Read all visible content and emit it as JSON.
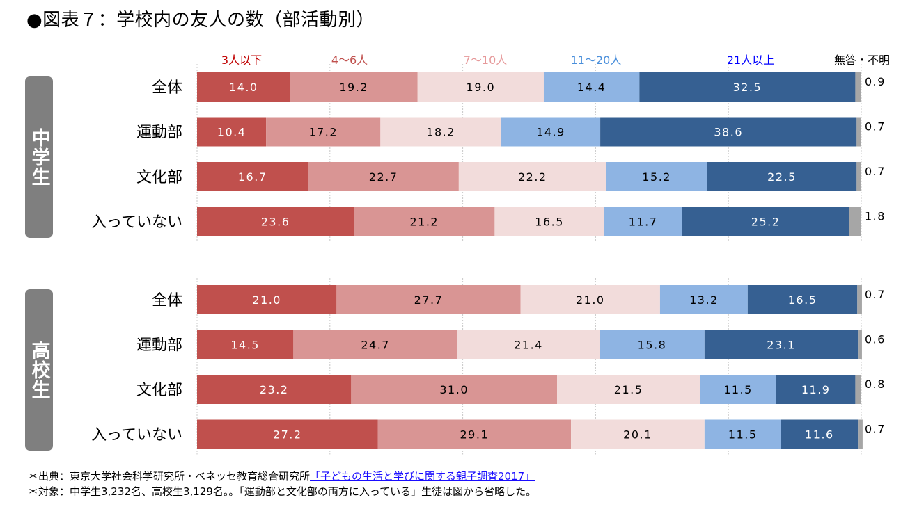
{
  "title": "●図表７：学校内の友人の数（部活動別）",
  "footnotes": {
    "source_prefix": "＊出典：東京大学社会科学研究所・ベネッセ教育総合研究所",
    "source_link": "「子どもの生活と学びに関する親子調査2017」",
    "subjects": "＊対象：中学生3,232名、高校生3,129名。。「運動部と文化部の両方に入っている」生徒は図から省略した。"
  },
  "chart_data": {
    "type": "bar",
    "orientation": "horizontal",
    "stacked": true,
    "unit": "%",
    "title": "●図表７：学校内の友人の数（部活動別）",
    "xlim": [
      0,
      100
    ],
    "grid": true,
    "legend_placement": "top",
    "series": [
      {
        "name": "3人以下",
        "color": "#c0504d",
        "label_color": "#ffffff",
        "legend_color": "#c00000"
      },
      {
        "name": "4〜6人",
        "color": "#d99594",
        "label_color": "#000000",
        "legend_color": "#c0504d"
      },
      {
        "name": "7〜10人",
        "color": "#f2dcdb",
        "label_color": "#000000",
        "legend_color": "#e6999a"
      },
      {
        "name": "11〜20人",
        "color": "#8eb4e3",
        "label_color": "#000000",
        "legend_color": "#4a8fdb"
      },
      {
        "name": "21人以上",
        "color": "#366092",
        "label_color": "#ffffff",
        "legend_color": "#0000ff"
      },
      {
        "name": "無答・不明",
        "color": "#a6a6a6",
        "label_color": "#000000",
        "legend_color": "#000000"
      }
    ],
    "groups": [
      {
        "name": "中学生",
        "categories": [
          "全体",
          "運動部",
          "文化部",
          "入っていない"
        ],
        "values": [
          [
            14.0,
            19.2,
            19.0,
            14.4,
            32.5,
            0.9
          ],
          [
            10.4,
            17.2,
            18.2,
            14.9,
            38.6,
            0.7
          ],
          [
            16.7,
            22.7,
            22.2,
            15.2,
            22.5,
            0.7
          ],
          [
            23.6,
            21.2,
            16.5,
            11.7,
            25.2,
            1.8
          ]
        ]
      },
      {
        "name": "高校生",
        "categories": [
          "全体",
          "運動部",
          "文化部",
          "入っていない"
        ],
        "values": [
          [
            21.0,
            27.7,
            21.0,
            13.2,
            16.5,
            0.7
          ],
          [
            14.5,
            24.7,
            21.4,
            15.8,
            23.1,
            0.6
          ],
          [
            23.2,
            31.0,
            21.5,
            11.5,
            11.9,
            0.8
          ],
          [
            27.2,
            29.1,
            20.1,
            11.5,
            11.6,
            0.7
          ]
        ]
      }
    ]
  }
}
